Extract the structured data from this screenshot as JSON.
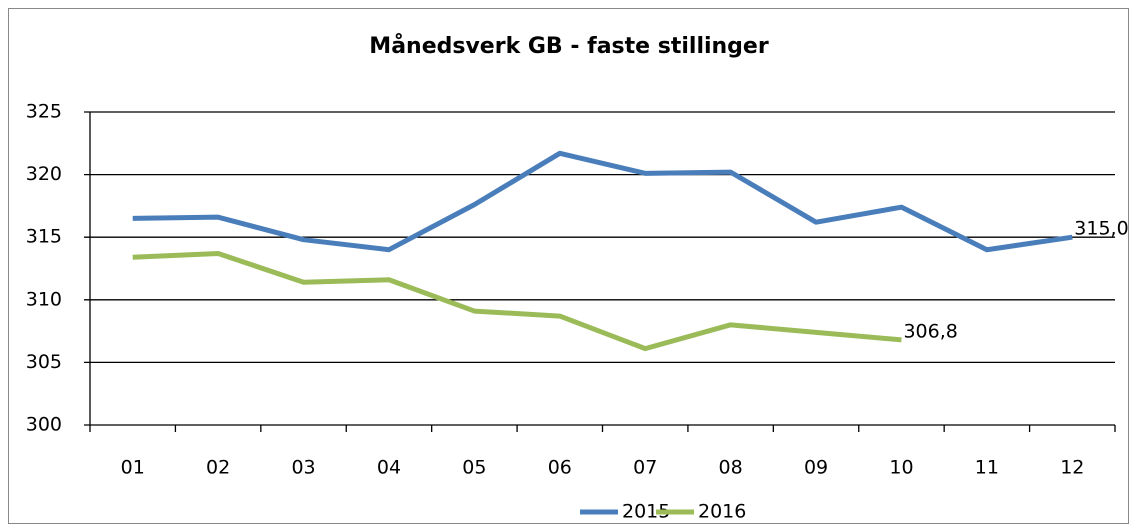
{
  "chart_data": {
    "type": "line",
    "title": "Månedsverk GB - faste stillinger",
    "categories": [
      "01",
      "02",
      "03",
      "04",
      "05",
      "06",
      "07",
      "08",
      "09",
      "10",
      "11",
      "12"
    ],
    "series": [
      {
        "name": "2015",
        "color": "#4a7ebb",
        "values": [
          316.5,
          316.6,
          314.8,
          314.0,
          317.6,
          321.7,
          320.1,
          320.2,
          316.2,
          317.4,
          314.0,
          315.0
        ],
        "value_labels": [
          null,
          null,
          null,
          null,
          null,
          null,
          null,
          null,
          null,
          null,
          null,
          "315,0"
        ]
      },
      {
        "name": "2016",
        "color": "#9bbb59",
        "values": [
          313.4,
          313.7,
          311.4,
          311.6,
          309.1,
          308.7,
          306.1,
          308.0,
          307.4,
          306.8,
          null,
          null
        ],
        "value_labels": [
          null,
          null,
          null,
          null,
          null,
          null,
          null,
          null,
          null,
          "306,8",
          null,
          null
        ]
      }
    ],
    "ylim": [
      300,
      325
    ],
    "yticks": [
      300,
      305,
      310,
      315,
      320,
      325
    ],
    "grid": true,
    "legend": "bottom"
  }
}
